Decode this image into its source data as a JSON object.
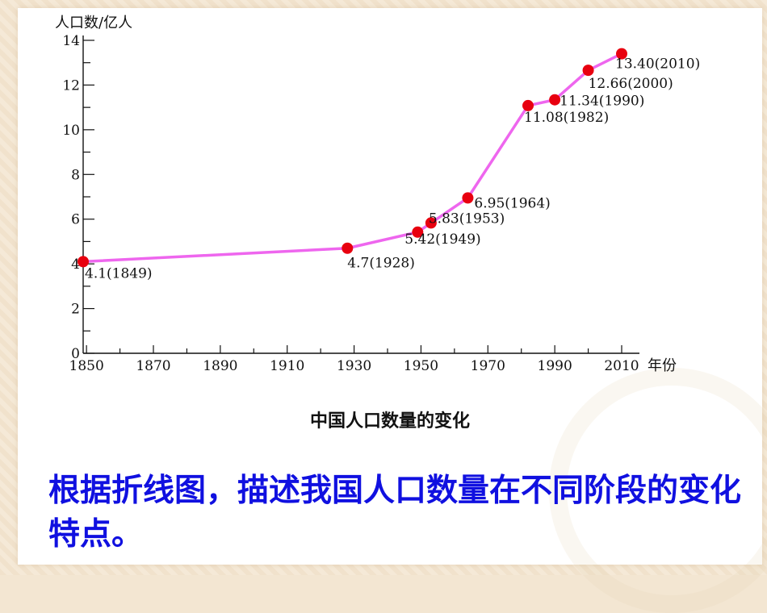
{
  "chart_data": {
    "type": "line",
    "ylabel": "人口数/亿人",
    "xlabel": "年份",
    "xlim": [
      1849,
      2020
    ],
    "ylim": [
      0,
      14
    ],
    "x_ticks": [
      1850,
      1870,
      1890,
      1910,
      1930,
      1950,
      1970,
      1990,
      2010
    ],
    "y_ticks": [
      0,
      2,
      4,
      6,
      8,
      10,
      12,
      14
    ],
    "line_color": "#ee66ee",
    "point_color": "#e8000f",
    "series": [
      {
        "points": [
          {
            "x": 1849,
            "y": 4.1,
            "label": "4.1(1849)"
          },
          {
            "x": 1928,
            "y": 4.7,
            "label": "4.7(1928)"
          },
          {
            "x": 1949,
            "y": 5.42,
            "label": "5.42(1949)"
          },
          {
            "x": 1953,
            "y": 5.83,
            "label": "5.83(1953)"
          },
          {
            "x": 1964,
            "y": 6.95,
            "label": "6.95(1964)"
          },
          {
            "x": 1982,
            "y": 11.08,
            "label": "11.08(1982)"
          },
          {
            "x": 1990,
            "y": 11.34,
            "label": "11.34(1990)"
          },
          {
            "x": 2000,
            "y": 12.66,
            "label": "12.66(2000)"
          },
          {
            "x": 2010,
            "y": 13.4,
            "label": "13.40(2010)"
          }
        ]
      }
    ]
  },
  "caption": "中国人口数量的变化",
  "question": "根据折线图，描述我国人口数量在不同阶段的变化特点。"
}
